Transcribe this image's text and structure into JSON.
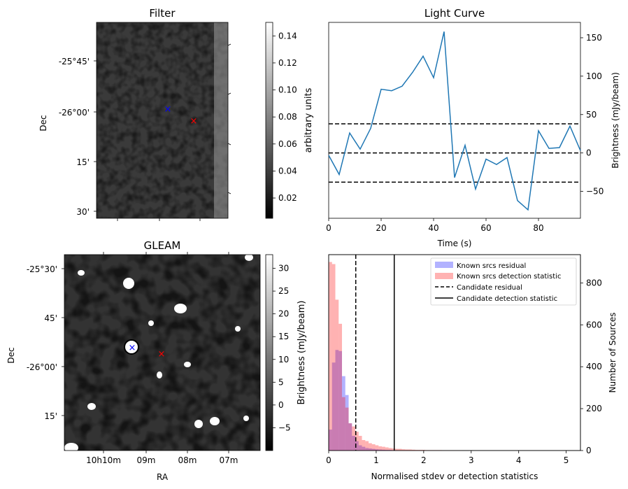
{
  "panels": {
    "filter": {
      "title": "Filter",
      "ylabel": "Dec",
      "yticks": [
        "-25°45'",
        "-26°00'",
        "15'",
        "30'"
      ],
      "colorbar": {
        "label": "arbitrary units",
        "ticks": [
          "0.02",
          "0.04",
          "0.06",
          "0.08",
          "0.10",
          "0.12",
          "0.14"
        ],
        "range": [
          0.005,
          0.15
        ]
      },
      "markers": [
        {
          "symbol": "×",
          "color": "#0000ff",
          "label": "blue-cross"
        },
        {
          "symbol": "×",
          "color": "#ff0000",
          "label": "red-cross"
        }
      ]
    },
    "gleam": {
      "title": "GLEAM",
      "xlabel": "RA",
      "ylabel": "Dec",
      "xticks": [
        "10h10m",
        "09m",
        "08m",
        "07m"
      ],
      "yticks": [
        "-25°30'",
        "45'",
        "-26°00'",
        "15'"
      ],
      "colorbar": {
        "label": "Brightness (mJy/beam)",
        "ticks": [
          "−5",
          "0",
          "5",
          "10",
          "15",
          "20",
          "25",
          "30"
        ],
        "range": [
          -10,
          33
        ]
      },
      "markers": [
        {
          "symbol": "×",
          "color": "#0000ff",
          "label": "blue-cross"
        },
        {
          "symbol": "×",
          "color": "#ff0000",
          "label": "red-cross"
        }
      ]
    }
  },
  "chart_data": [
    {
      "type": "line",
      "title": "Light Curve",
      "xlabel": "Time (s)",
      "ylabel": "Brightness (mJy/beam)",
      "xlim": [
        0,
        96
      ],
      "ylim": [
        -85,
        170
      ],
      "xticks": [
        0,
        20,
        40,
        60,
        80
      ],
      "yticks": [
        -50,
        0,
        50,
        100,
        150
      ],
      "series": [
        {
          "color": "#1f77b4",
          "x": [
            0,
            4,
            8,
            12,
            16,
            20,
            24,
            28,
            32,
            36,
            40,
            44,
            48,
            52,
            56,
            60,
            64,
            68,
            72,
            76,
            80,
            84,
            88,
            92,
            96
          ],
          "y": [
            -3,
            -28,
            26,
            5,
            32,
            83,
            81,
            87,
            105,
            126,
            98,
            158,
            -32,
            10,
            -47,
            -8,
            -15,
            -6,
            -62,
            -74,
            29,
            6,
            7,
            35,
            3
          ]
        }
      ],
      "hlines": [
        {
          "y": 38,
          "style": "dashed",
          "color": "#000000"
        },
        {
          "y": 0,
          "style": "dashed",
          "color": "#000000"
        },
        {
          "y": -38,
          "style": "dashed",
          "color": "#000000"
        }
      ],
      "grid": false
    },
    {
      "type": "histogram",
      "xlabel": "Normalised stdev or detection statistics",
      "ylabel": "Number of Sources",
      "xlim": [
        0,
        5.3
      ],
      "ylim": [
        0,
        935
      ],
      "xticks": [
        0,
        1,
        2,
        3,
        4,
        5
      ],
      "yticks": [
        0,
        200,
        400,
        600,
        800
      ],
      "bin_width": 0.07,
      "series": [
        {
          "name": "Known srcs residual",
          "color": "#0000ff",
          "alpha": 0.3,
          "bin_start": 0.0,
          "counts": [
            100,
            420,
            480,
            475,
            355,
            265,
            130,
            70,
            45,
            25,
            18,
            12,
            10,
            8,
            6,
            5,
            4,
            3,
            3,
            2
          ]
        },
        {
          "name": "Known srcs detection statistic",
          "color": "#ff0000",
          "alpha": 0.3,
          "bin_start": 0.0,
          "counts": [
            900,
            890,
            720,
            605,
            255,
            205,
            130,
            115,
            90,
            70,
            50,
            45,
            35,
            30,
            25,
            20,
            18,
            15,
            12,
            10,
            8,
            8,
            6,
            5,
            5,
            4,
            3,
            3,
            3,
            2,
            2,
            2,
            2,
            2,
            1,
            1,
            1,
            1,
            1,
            1
          ]
        }
      ],
      "vlines": [
        {
          "name": "Candidate residual",
          "x": 0.57,
          "style": "dashed",
          "color": "#000000"
        },
        {
          "name": "Candidate detection statistic",
          "x": 1.38,
          "style": "solid",
          "color": "#000000"
        }
      ],
      "legend": "top-right",
      "grid": false
    }
  ]
}
